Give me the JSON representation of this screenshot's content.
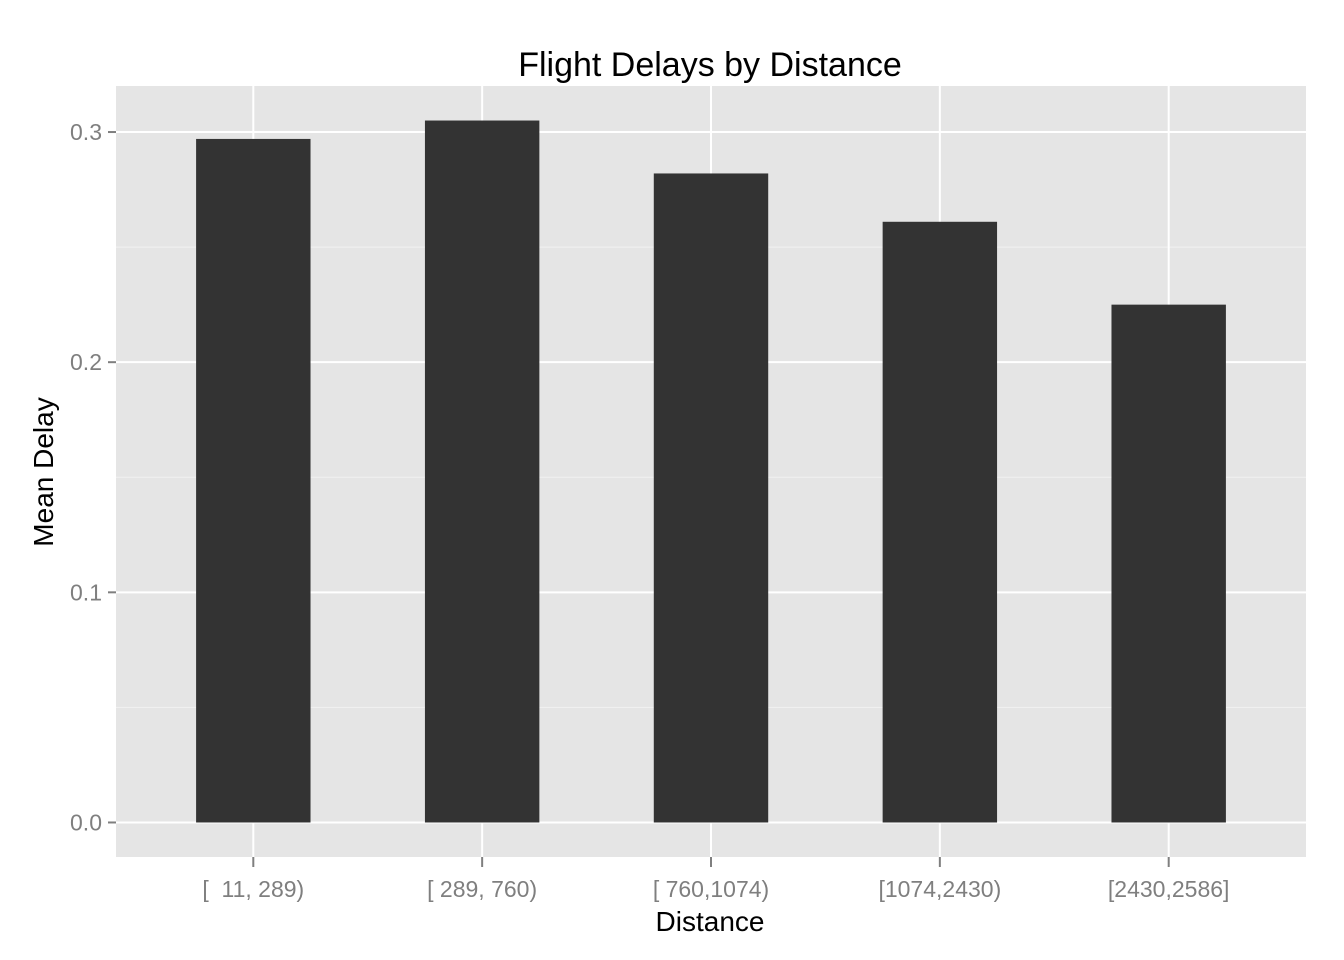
{
  "chart_data": {
    "type": "bar",
    "title": "Flight Delays by Distance",
    "xlabel": "Distance",
    "ylabel": "Mean Delay",
    "categories": [
      "[  11, 289)",
      "[ 289, 760)",
      "[ 760,1074)",
      "[1074,2430)",
      "[2430,2586]"
    ],
    "values": [
      0.297,
      0.305,
      0.282,
      0.261,
      0.225
    ],
    "ylim": [
      -0.015,
      0.32
    ],
    "yticks": [
      0.0,
      0.1,
      0.2,
      0.3
    ],
    "ytick_labels": [
      "0.0",
      "0.1",
      "0.2",
      "0.3"
    ],
    "grid": true,
    "legend": "none",
    "colors": {
      "panel_background": "#e5e5e5",
      "grid_major": "#ffffff",
      "grid_minor": "#f2f2f2",
      "bar_fill": "#333333",
      "tick_text": "#7f7f7f",
      "axis_ticks": "#7f7f7f"
    }
  }
}
